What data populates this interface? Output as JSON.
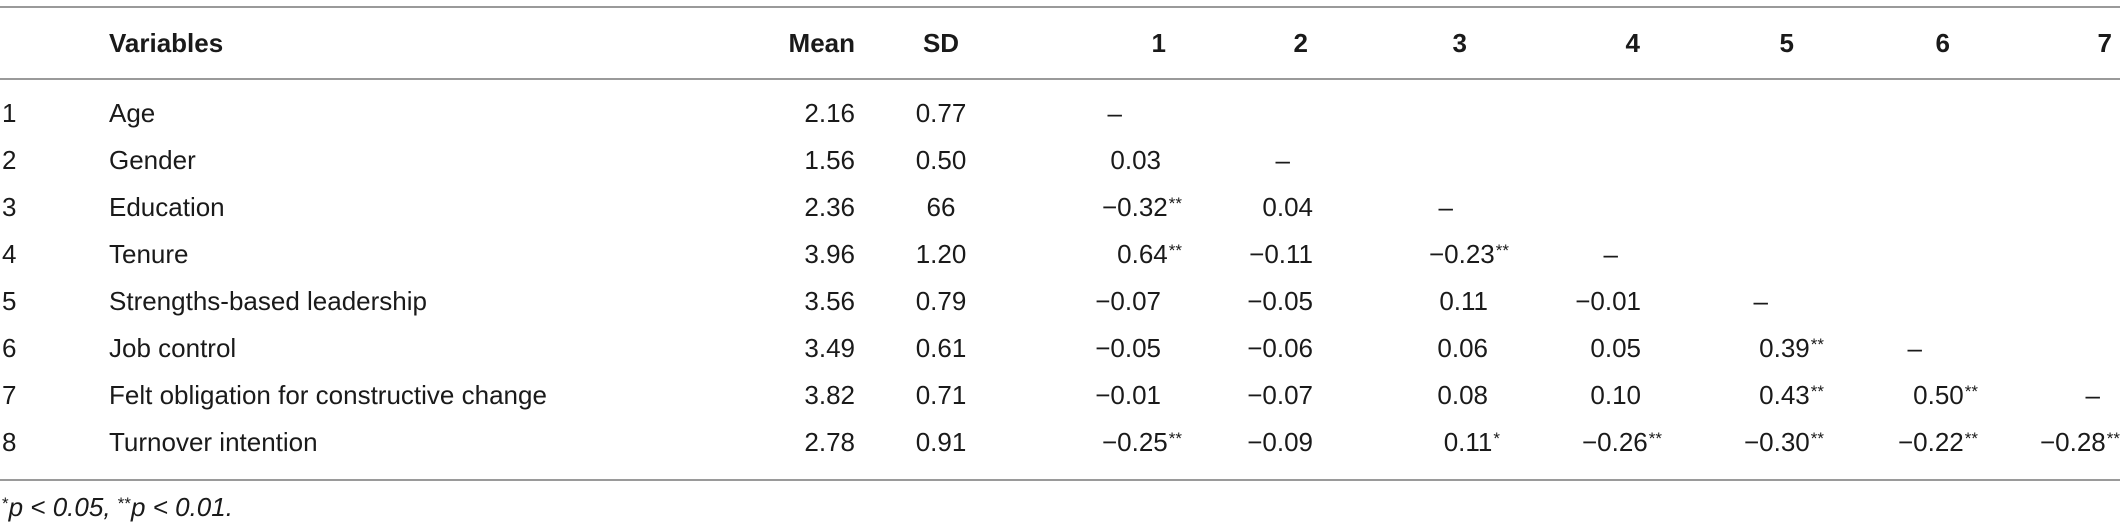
{
  "table": {
    "headers": {
      "index": "",
      "variable": "Variables",
      "mean": "Mean",
      "sd": "SD",
      "cols": [
        "1",
        "2",
        "3",
        "4",
        "5",
        "6",
        "7"
      ]
    },
    "rows": [
      {
        "idx": "1",
        "variable": "Age",
        "mean": "2.16",
        "sd": "0.77",
        "cells": [
          {
            "v": "–",
            "s": ""
          },
          {
            "v": "",
            "s": ""
          },
          {
            "v": "",
            "s": ""
          },
          {
            "v": "",
            "s": ""
          },
          {
            "v": "",
            "s": ""
          },
          {
            "v": "",
            "s": ""
          },
          {
            "v": "",
            "s": ""
          }
        ]
      },
      {
        "idx": "2",
        "variable": "Gender",
        "mean": "1.56",
        "sd": "0.50",
        "cells": [
          {
            "v": "0.03",
            "s": ""
          },
          {
            "v": "–",
            "s": ""
          },
          {
            "v": "",
            "s": ""
          },
          {
            "v": "",
            "s": ""
          },
          {
            "v": "",
            "s": ""
          },
          {
            "v": "",
            "s": ""
          },
          {
            "v": "",
            "s": ""
          }
        ]
      },
      {
        "idx": "3",
        "variable": "Education",
        "mean": "2.36",
        "sd": "66",
        "cells": [
          {
            "v": "−0.32",
            "s": "**"
          },
          {
            "v": "0.04",
            "s": ""
          },
          {
            "v": "–",
            "s": ""
          },
          {
            "v": "",
            "s": ""
          },
          {
            "v": "",
            "s": ""
          },
          {
            "v": "",
            "s": ""
          },
          {
            "v": "",
            "s": ""
          }
        ]
      },
      {
        "idx": "4",
        "variable": "Tenure",
        "mean": "3.96",
        "sd": "1.20",
        "cells": [
          {
            "v": "0.64",
            "s": "**"
          },
          {
            "v": "−0.11",
            "s": ""
          },
          {
            "v": "−0.23",
            "s": "**"
          },
          {
            "v": "–",
            "s": ""
          },
          {
            "v": "",
            "s": ""
          },
          {
            "v": "",
            "s": ""
          },
          {
            "v": "",
            "s": ""
          }
        ]
      },
      {
        "idx": "5",
        "variable": "Strengths-based leadership",
        "mean": "3.56",
        "sd": "0.79",
        "cells": [
          {
            "v": "−0.07",
            "s": ""
          },
          {
            "v": "−0.05",
            "s": ""
          },
          {
            "v": "0.11",
            "s": ""
          },
          {
            "v": "−0.01",
            "s": ""
          },
          {
            "v": "–",
            "s": ""
          },
          {
            "v": "",
            "s": ""
          },
          {
            "v": "",
            "s": ""
          }
        ]
      },
      {
        "idx": "6",
        "variable": "Job control",
        "mean": "3.49",
        "sd": "0.61",
        "cells": [
          {
            "v": "−0.05",
            "s": ""
          },
          {
            "v": "−0.06",
            "s": ""
          },
          {
            "v": "0.06",
            "s": ""
          },
          {
            "v": "0.05",
            "s": ""
          },
          {
            "v": "0.39",
            "s": "**"
          },
          {
            "v": "–",
            "s": ""
          },
          {
            "v": "",
            "s": ""
          }
        ]
      },
      {
        "idx": "7",
        "variable": "Felt obligation for constructive change",
        "mean": "3.82",
        "sd": "0.71",
        "cells": [
          {
            "v": "−0.01",
            "s": ""
          },
          {
            "v": "−0.07",
            "s": ""
          },
          {
            "v": "0.08",
            "s": ""
          },
          {
            "v": "0.10",
            "s": ""
          },
          {
            "v": "0.43",
            "s": "**"
          },
          {
            "v": "0.50",
            "s": "**"
          },
          {
            "v": "–",
            "s": ""
          }
        ]
      },
      {
        "idx": "8",
        "variable": "Turnover intention",
        "mean": "2.78",
        "sd": "0.91",
        "cells": [
          {
            "v": "−0.25",
            "s": "**"
          },
          {
            "v": "−0.09",
            "s": ""
          },
          {
            "v": "0.11",
            "s": "*"
          },
          {
            "v": "−0.26",
            "s": "**"
          },
          {
            "v": "−0.30",
            "s": "**"
          },
          {
            "v": "−0.22",
            "s": "**"
          },
          {
            "v": "−0.28",
            "s": "**"
          }
        ]
      }
    ]
  },
  "footnote": {
    "parts": [
      "*",
      "p < 0.05, ",
      "**",
      "p < 0.01."
    ]
  }
}
